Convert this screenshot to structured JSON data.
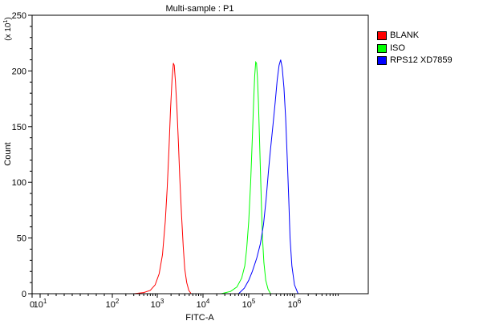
{
  "chart_data": {
    "type": "area",
    "title": "Multi-sample : P1",
    "xlabel": "FITC-A",
    "ylabel": "Count",
    "y_multiplier": "(x 10",
    "y_multiplier_exp": "1",
    "y_multiplier_close": ")",
    "ylim": [
      0,
      250
    ],
    "yticks": [
      0,
      50,
      100,
      150,
      200,
      250
    ],
    "x_scale": "biexponential",
    "xticks": [
      {
        "value": 0,
        "label": "0",
        "exp": ""
      },
      {
        "value": 10,
        "label": "10",
        "exp": "1"
      },
      {
        "value": 100,
        "label": "10",
        "exp": "2"
      },
      {
        "value": 1000,
        "label": "10",
        "exp": "3"
      },
      {
        "value": 10000,
        "label": "10",
        "exp": "4"
      },
      {
        "value": 100000,
        "label": "10",
        "exp": "5"
      },
      {
        "value": 1000000,
        "label": "10",
        "exp": "6"
      }
    ],
    "grid": false,
    "legend_position": "right",
    "series": [
      {
        "name": "BLANK",
        "color": "#ff0000",
        "points": [
          [
            300,
            0
          ],
          [
            500,
            1
          ],
          [
            700,
            3
          ],
          [
            900,
            8
          ],
          [
            1100,
            18
          ],
          [
            1300,
            35
          ],
          [
            1500,
            65
          ],
          [
            1650,
            95
          ],
          [
            1800,
            130
          ],
          [
            1950,
            165
          ],
          [
            2100,
            192
          ],
          [
            2250,
            207
          ],
          [
            2350,
            205
          ],
          [
            2500,
            190
          ],
          [
            2700,
            165
          ],
          [
            2900,
            135
          ],
          [
            3100,
            105
          ],
          [
            3400,
            70
          ],
          [
            3700,
            42
          ],
          [
            4000,
            22
          ],
          [
            4400,
            10
          ],
          [
            4900,
            3
          ],
          [
            5500,
            0
          ]
        ]
      },
      {
        "name": "ISO",
        "color": "#00ff00",
        "points": [
          [
            25000,
            0
          ],
          [
            40000,
            2
          ],
          [
            55000,
            6
          ],
          [
            70000,
            14
          ],
          [
            82000,
            25
          ],
          [
            90000,
            40
          ],
          [
            100000,
            65
          ],
          [
            110000,
            100
          ],
          [
            120000,
            140
          ],
          [
            128000,
            172
          ],
          [
            135000,
            195
          ],
          [
            142000,
            208
          ],
          [
            148000,
            207
          ],
          [
            155000,
            195
          ],
          [
            163000,
            172
          ],
          [
            172000,
            140
          ],
          [
            180000,
            110
          ],
          [
            190000,
            78
          ],
          [
            200000,
            50
          ],
          [
            215000,
            28
          ],
          [
            235000,
            12
          ],
          [
            265000,
            4
          ],
          [
            300000,
            0
          ]
        ]
      },
      {
        "name": "RPS12 XD7859",
        "color": "#0000ff",
        "points": [
          [
            60000,
            0
          ],
          [
            80000,
            5
          ],
          [
            100000,
            12
          ],
          [
            120000,
            20
          ],
          [
            150000,
            32
          ],
          [
            180000,
            45
          ],
          [
            210000,
            62
          ],
          [
            240000,
            85
          ],
          [
            270000,
            110
          ],
          [
            300000,
            130
          ],
          [
            340000,
            152
          ],
          [
            380000,
            172
          ],
          [
            420000,
            192
          ],
          [
            460000,
            205
          ],
          [
            500000,
            210
          ],
          [
            540000,
            203
          ],
          [
            590000,
            185
          ],
          [
            640000,
            158
          ],
          [
            700000,
            118
          ],
          [
            750000,
            85
          ],
          [
            800000,
            50
          ],
          [
            880000,
            25
          ],
          [
            1000000,
            8
          ],
          [
            1200000,
            0
          ]
        ]
      }
    ]
  }
}
